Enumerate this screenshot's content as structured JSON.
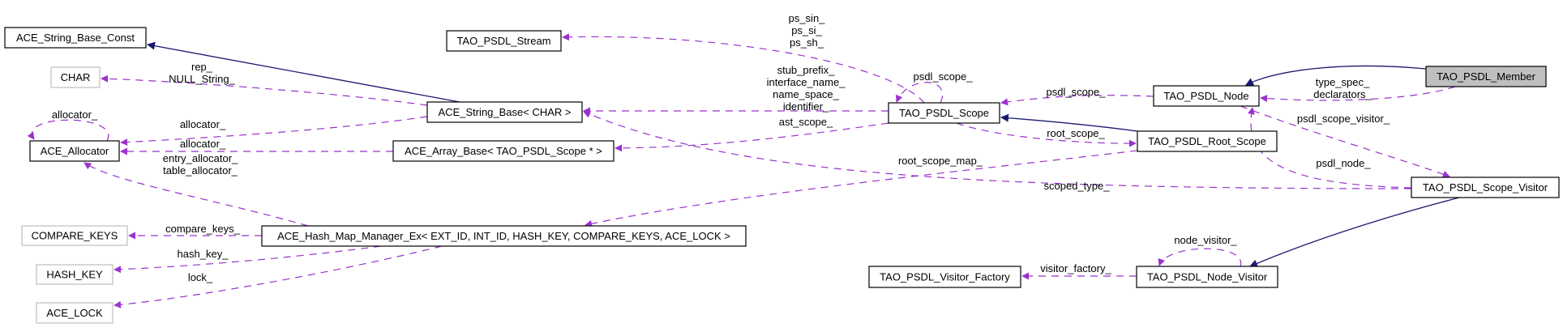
{
  "colors": {
    "usage_edge": "#9a32cd",
    "inheritance_edge": "#191970",
    "focus_fill": "#bfbfbf",
    "external_border": "#bfbfbf"
  },
  "nodes": [
    {
      "id": "string_base_const",
      "label": "ACE_String_Base_Const"
    },
    {
      "id": "psdl_stream",
      "label": "TAO_PSDL_Stream"
    },
    {
      "id": "char",
      "label": "CHAR",
      "external": true
    },
    {
      "id": "string_base_char",
      "label": "ACE_String_Base< CHAR >"
    },
    {
      "id": "allocator",
      "label": "ACE_Allocator"
    },
    {
      "id": "array_base",
      "label": "ACE_Array_Base< TAO_PSDL_Scope * >"
    },
    {
      "id": "psdl_scope",
      "label": "TAO_PSDL_Scope"
    },
    {
      "id": "psdl_node",
      "label": "TAO_PSDL_Node"
    },
    {
      "id": "psdl_member",
      "label": "TAO_PSDL_Member",
      "focus": true
    },
    {
      "id": "root_scope",
      "label": "TAO_PSDL_Root_Scope"
    },
    {
      "id": "scope_visitor",
      "label": "TAO_PSDL_Scope_Visitor"
    },
    {
      "id": "compare_keys",
      "label": "COMPARE_KEYS",
      "external": true
    },
    {
      "id": "hash_map",
      "label": "ACE_Hash_Map_Manager_Ex< EXT_ID, INT_ID, HASH_KEY, COMPARE_KEYS, ACE_LOCK >"
    },
    {
      "id": "hash_key",
      "label": "HASH_KEY",
      "external": true
    },
    {
      "id": "ace_lock",
      "label": "ACE_LOCK",
      "external": true
    },
    {
      "id": "visitor_factory",
      "label": "TAO_PSDL_Visitor_Factory"
    },
    {
      "id": "node_visitor",
      "label": "TAO_PSDL_Node_Visitor"
    }
  ],
  "edges": [
    {
      "id": "e1",
      "from": "psdl_scope",
      "to": "psdl_stream",
      "kind": "usage",
      "labels": [
        "ps_sin_",
        "ps_si_",
        "ps_sh_"
      ]
    },
    {
      "id": "e2",
      "from": "psdl_scope",
      "to": "psdl_scope",
      "kind": "usage",
      "labels": [
        "psdl_scope_"
      ]
    },
    {
      "id": "e3",
      "from": "string_base_char",
      "to": "char",
      "kind": "usage",
      "labels": [
        "rep_",
        "NULL_String_"
      ]
    },
    {
      "id": "e4",
      "from": "psdl_scope",
      "to": "string_base_char",
      "kind": "usage",
      "labels": [
        "stub_prefix_",
        "interface_name_",
        "name_space_",
        "identifier_"
      ]
    },
    {
      "id": "e5",
      "from": "string_base_char",
      "to": "allocator",
      "kind": "usage",
      "labels": [
        "allocator_"
      ]
    },
    {
      "id": "e6",
      "from": "allocator",
      "to": "allocator",
      "kind": "usage",
      "labels": [
        "allocator_"
      ]
    },
    {
      "id": "e7",
      "from": "array_base",
      "to": "allocator",
      "kind": "usage",
      "labels": [
        "allocator_"
      ]
    },
    {
      "id": "e8",
      "from": "hash_map",
      "to": "allocator",
      "kind": "usage",
      "labels": [
        "entry_allocator_",
        "table_allocator_"
      ]
    },
    {
      "id": "e9",
      "from": "psdl_scope",
      "to": "array_base",
      "kind": "usage",
      "labels": [
        "ast_scope_"
      ]
    },
    {
      "id": "e10",
      "from": "psdl_node",
      "to": "psdl_scope",
      "kind": "usage",
      "labels": [
        "psdl_scope_"
      ]
    },
    {
      "id": "e11",
      "from": "psdl_scope",
      "to": "root_scope",
      "kind": "usage",
      "labels": [
        "root_scope_"
      ]
    },
    {
      "id": "e12",
      "from": "root_scope",
      "to": "hash_map",
      "kind": "usage",
      "labels": [
        "root_scope_map_"
      ]
    },
    {
      "id": "e13",
      "from": "psdl_member",
      "to": "psdl_node",
      "kind": "usage",
      "labels": [
        "type_spec_",
        "declarators_"
      ]
    },
    {
      "id": "e14",
      "from": "psdl_node",
      "to": "scope_visitor",
      "kind": "usage",
      "labels": [
        "psdl_scope_visitor_"
      ]
    },
    {
      "id": "e15",
      "from": "scope_visitor",
      "to": "psdl_node",
      "kind": "usage",
      "labels": [
        "psdl_node_"
      ]
    },
    {
      "id": "e16",
      "from": "scope_visitor",
      "to": "string_base_char",
      "kind": "usage",
      "labels": [
        "scoped_type_"
      ]
    },
    {
      "id": "e17",
      "from": "hash_map",
      "to": "compare_keys",
      "kind": "usage",
      "labels": [
        "compare_keys_"
      ]
    },
    {
      "id": "e18",
      "from": "hash_map",
      "to": "hash_key",
      "kind": "usage",
      "labels": [
        "hash_key_"
      ]
    },
    {
      "id": "e19",
      "from": "hash_map",
      "to": "ace_lock",
      "kind": "usage",
      "labels": [
        "lock_"
      ]
    },
    {
      "id": "e20",
      "from": "node_visitor",
      "to": "visitor_factory",
      "kind": "usage",
      "labels": [
        "visitor_factory_"
      ]
    },
    {
      "id": "e21",
      "from": "node_visitor",
      "to": "node_visitor",
      "kind": "usage",
      "labels": [
        "node_visitor_"
      ]
    },
    {
      "id": "s1",
      "from": "string_base_char",
      "to": "string_base_const",
      "kind": "inheritance",
      "labels": []
    },
    {
      "id": "s2",
      "from": "root_scope",
      "to": "psdl_scope",
      "kind": "inheritance",
      "labels": []
    },
    {
      "id": "s3",
      "from": "psdl_member",
      "to": "psdl_node",
      "kind": "inheritance",
      "labels": []
    },
    {
      "id": "s4",
      "from": "scope_visitor",
      "to": "node_visitor",
      "kind": "inheritance",
      "labels": []
    }
  ]
}
